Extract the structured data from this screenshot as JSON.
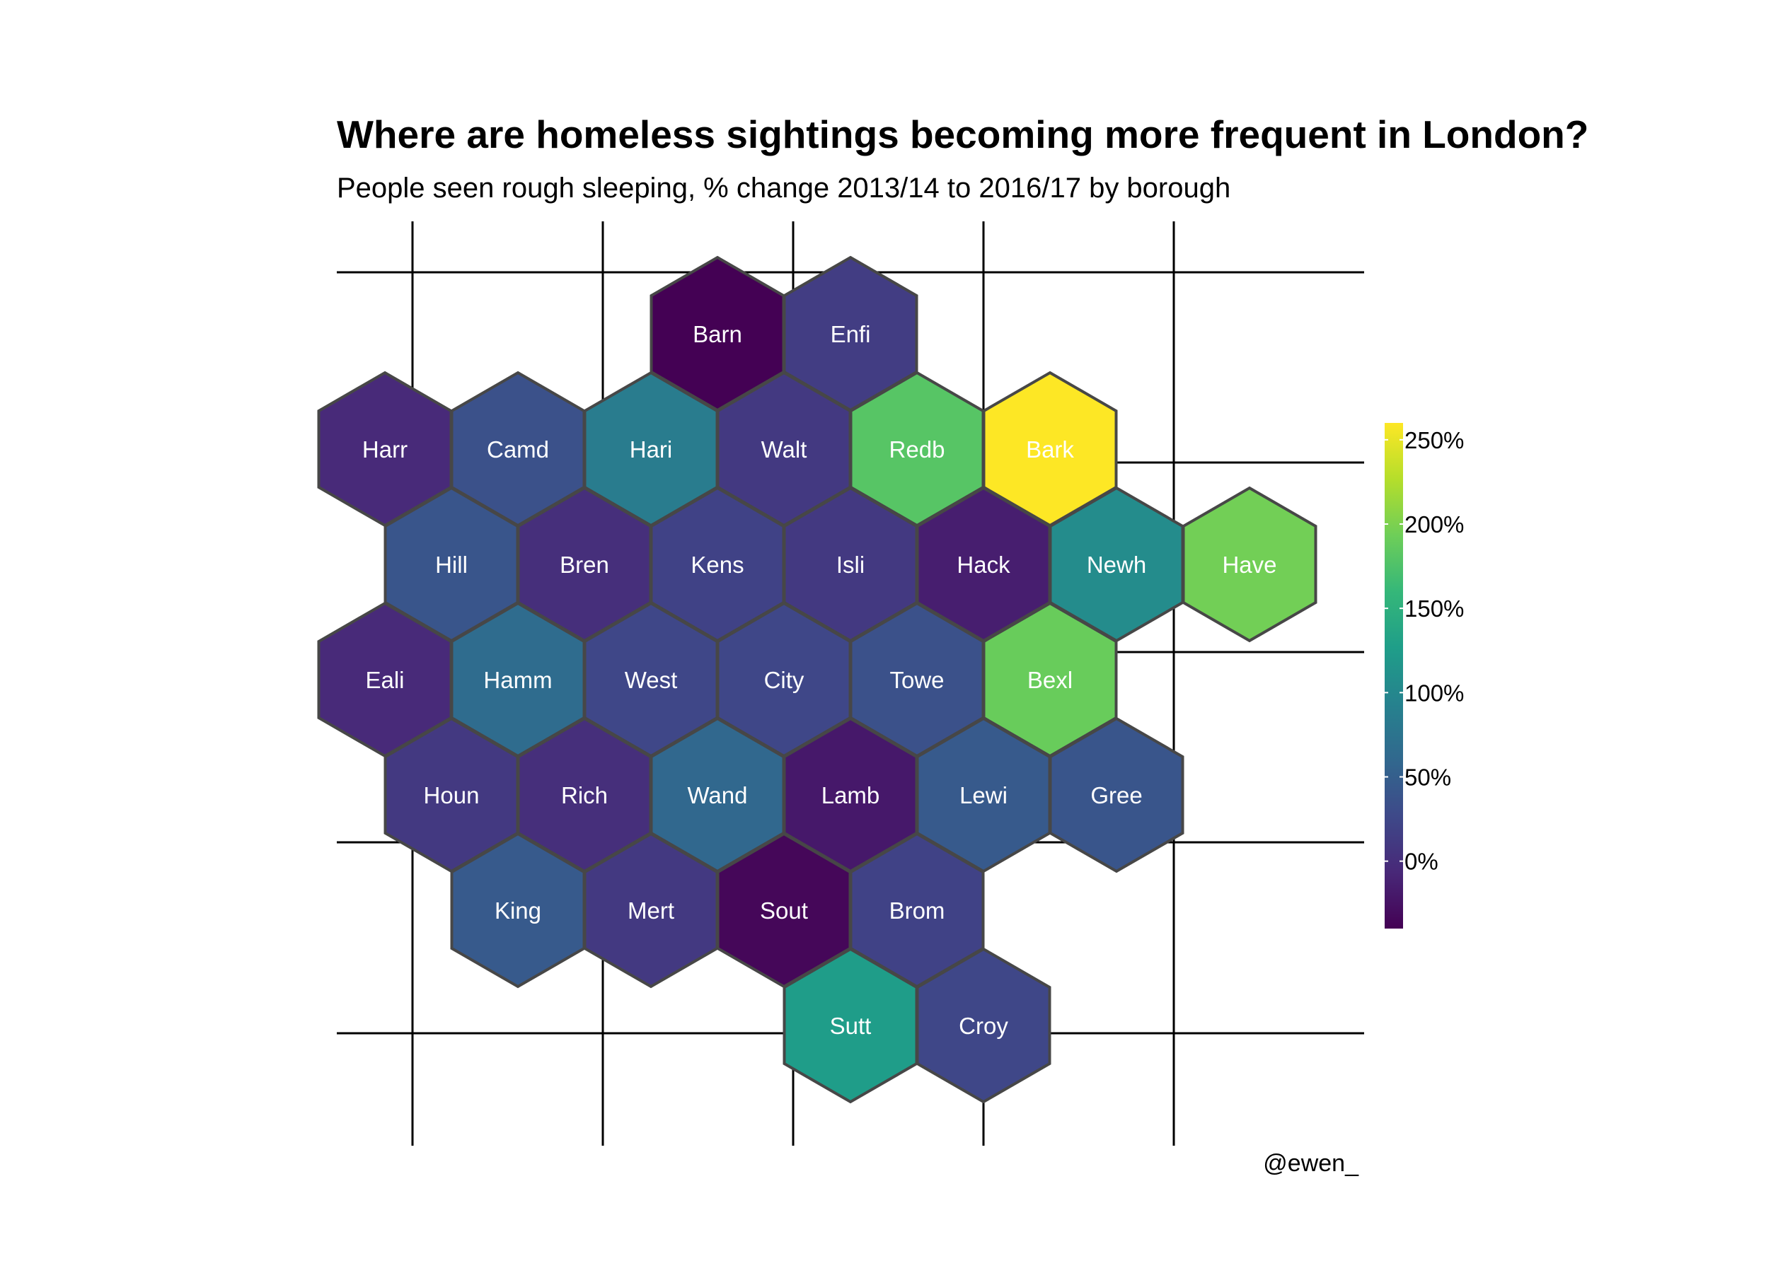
{
  "chart_data": {
    "type": "hexmap",
    "title": "Where are homeless sightings becoming more frequent in London?",
    "subtitle": "People seen rough sleeping, % change 2013/14 to 2016/17 by borough",
    "caption": "@ewen_",
    "grid": true,
    "legend": {
      "position": "right",
      "ticks": [
        "0%",
        "50%",
        "100%",
        "150%",
        "200%",
        "250%"
      ],
      "tick_values": [
        0,
        50,
        100,
        150,
        200,
        250
      ],
      "range": [
        -40,
        260
      ]
    },
    "boroughs": [
      {
        "name": "Barn",
        "row": 0,
        "col": 2,
        "value": -40
      },
      {
        "name": "Enfi",
        "row": 0,
        "col": 3,
        "value": 15
      },
      {
        "name": "Harr",
        "row": 1,
        "col": 0,
        "value": -5
      },
      {
        "name": "Camd",
        "row": 1,
        "col": 1,
        "value": 35
      },
      {
        "name": "Hari",
        "row": 1,
        "col": 2,
        "value": 85
      },
      {
        "name": "Walt",
        "row": 1,
        "col": 3,
        "value": 10
      },
      {
        "name": "Redb",
        "row": 1,
        "col": 4,
        "value": 180
      },
      {
        "name": "Bark",
        "row": 1,
        "col": 5,
        "value": 260
      },
      {
        "name": "Hill",
        "row": 2,
        "col": 0,
        "value": 40
      },
      {
        "name": "Bren",
        "row": 2,
        "col": 1,
        "value": 0
      },
      {
        "name": "Kens",
        "row": 2,
        "col": 2,
        "value": 20
      },
      {
        "name": "Isli",
        "row": 2,
        "col": 3,
        "value": 10
      },
      {
        "name": "Hack",
        "row": 2,
        "col": 4,
        "value": -15
      },
      {
        "name": "Newh",
        "row": 2,
        "col": 5,
        "value": 105
      },
      {
        "name": "Have",
        "row": 2,
        "col": 6,
        "value": 195
      },
      {
        "name": "Eali",
        "row": 3,
        "col": 0,
        "value": -5
      },
      {
        "name": "Hamm",
        "row": 3,
        "col": 1,
        "value": 65
      },
      {
        "name": "West",
        "row": 3,
        "col": 2,
        "value": 25
      },
      {
        "name": "City",
        "row": 3,
        "col": 3,
        "value": 25
      },
      {
        "name": "Towe",
        "row": 3,
        "col": 4,
        "value": 35
      },
      {
        "name": "Bexl",
        "row": 3,
        "col": 5,
        "value": 190
      },
      {
        "name": "Houn",
        "row": 4,
        "col": 0,
        "value": 10
      },
      {
        "name": "Rich",
        "row": 4,
        "col": 1,
        "value": 0
      },
      {
        "name": "Wand",
        "row": 4,
        "col": 2,
        "value": 60
      },
      {
        "name": "Lamb",
        "row": 4,
        "col": 3,
        "value": -20
      },
      {
        "name": "Lewi",
        "row": 4,
        "col": 4,
        "value": 45
      },
      {
        "name": "Gree",
        "row": 4,
        "col": 5,
        "value": 40
      },
      {
        "name": "King",
        "row": 5,
        "col": 1,
        "value": 45
      },
      {
        "name": "Mert",
        "row": 5,
        "col": 2,
        "value": 10
      },
      {
        "name": "Sout",
        "row": 5,
        "col": 3,
        "value": -35
      },
      {
        "name": "Brom",
        "row": 5,
        "col": 4,
        "value": 20
      },
      {
        "name": "Sutt",
        "row": 6,
        "col": 3,
        "value": 125
      },
      {
        "name": "Croy",
        "row": 6,
        "col": 4,
        "value": 25
      }
    ]
  }
}
